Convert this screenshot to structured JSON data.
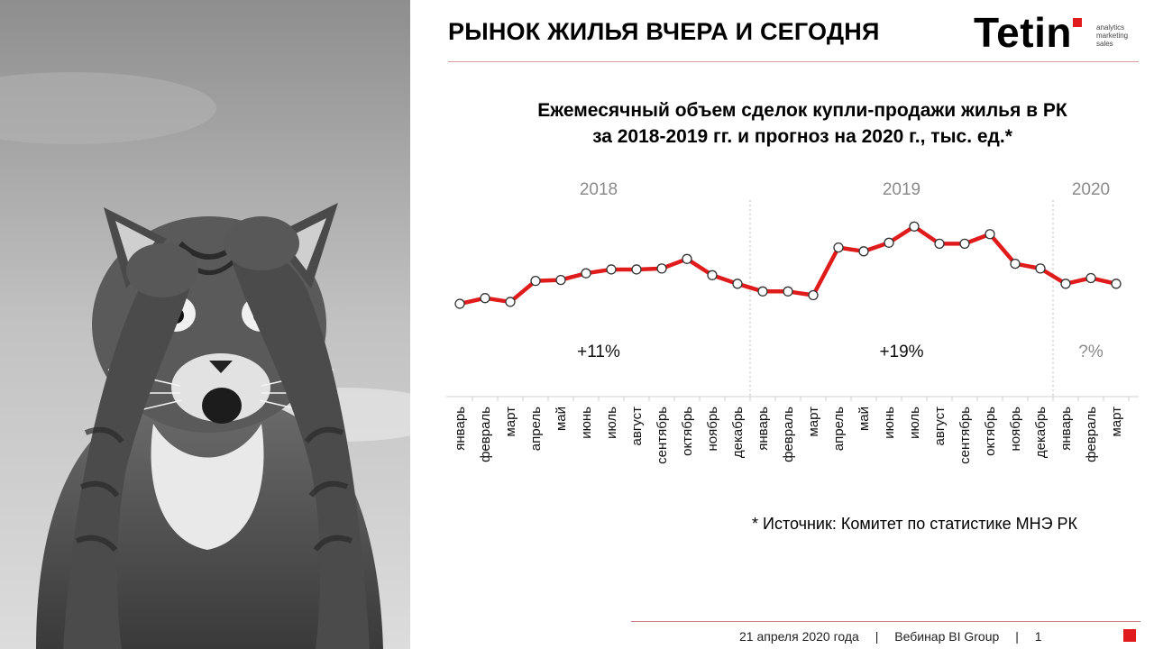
{
  "slide": {
    "title": "РЫНОК ЖИЛЬЯ ВЧЕРА И СЕГОДНЯ"
  },
  "logo": {
    "word": "Tetin",
    "tagline": [
      "analytics",
      "marketing",
      "sales"
    ],
    "accent_color": "#e01b1b"
  },
  "chart_data": {
    "type": "line",
    "title_lines": [
      "Ежемесячный объем сделок купли-продажи жилья в РК",
      "за 2018-2019 гг. и прогноз на 2020 г., тыс. ед.*"
    ],
    "categories": [
      "январь",
      "февраль",
      "март",
      "апрель",
      "май",
      "июнь",
      "июль",
      "август",
      "сентябрь",
      "октябрь",
      "ноябрь",
      "декабрь",
      "январь",
      "февраль",
      "март",
      "апрель",
      "май",
      "июнь",
      "июль",
      "август",
      "сентябрь",
      "октябрь",
      "ноябрь",
      "декабрь",
      "январь",
      "февраль",
      "март"
    ],
    "series": [
      {
        "values": [
          19.0,
          19.6,
          19.2,
          21.4,
          21.5,
          22.2,
          22.6,
          22.6,
          22.7,
          23.7,
          22.0,
          21.1,
          20.3,
          20.3,
          19.9,
          24.9,
          24.5,
          25.4,
          27.1,
          25.3,
          25.3,
          26.3,
          23.2,
          22.7,
          21.1,
          21.7,
          21.1
        ],
        "color": "#e01b1b"
      }
    ],
    "groups": [
      {
        "label": "2018",
        "growth": "+11%",
        "start": 0,
        "end": 11
      },
      {
        "label": "2019",
        "growth": "+19%",
        "start": 12,
        "end": 23
      },
      {
        "label": "2020",
        "growth": "?%",
        "start": 24,
        "end": 26
      }
    ],
    "ylim": [
      14,
      31
    ],
    "grid": false,
    "marker": "circle",
    "line_color": "#e01b1b",
    "marker_fill": "#ffffff"
  },
  "source_note": "* Источник: Комитет по статистике МНЭ РК",
  "footer": {
    "date": "21 апреля 2020 года",
    "event": "Вебинар BI Group",
    "page": "1"
  }
}
